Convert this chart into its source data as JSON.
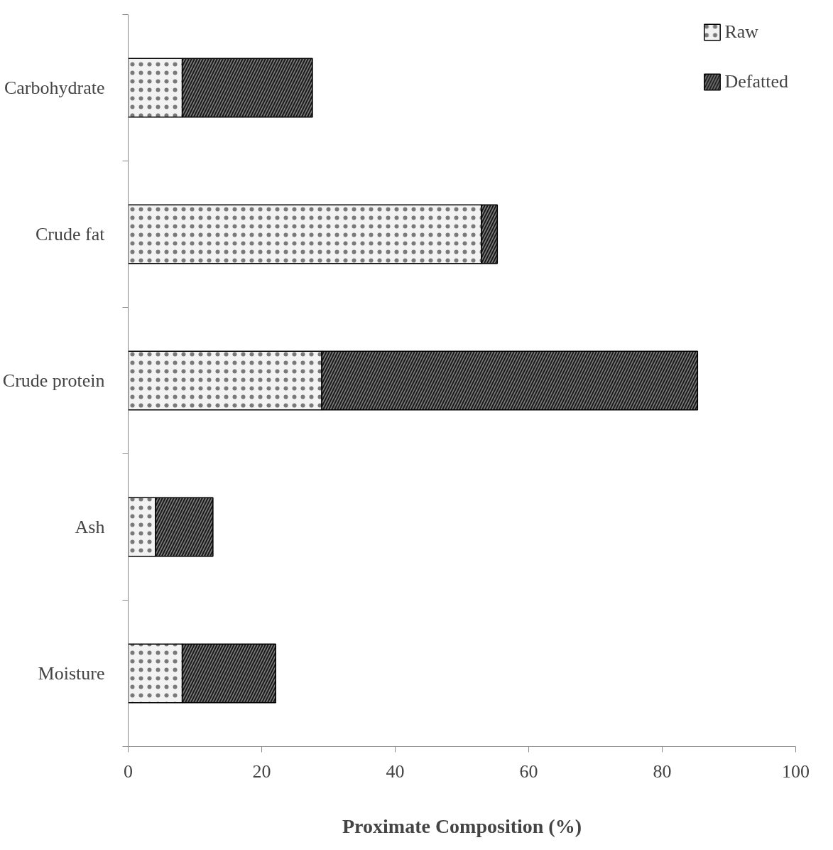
{
  "chart_data": {
    "type": "bar",
    "orientation": "horizontal",
    "stacked": true,
    "xlabel": "Proximate Composition (%)",
    "categories": [
      "Carbohydrate",
      "Crude fat",
      "Crude protein",
      "Ash",
      "Moisture"
    ],
    "series": [
      {
        "name": "Raw",
        "color": "#f2f2f2",
        "values": [
          8.1,
          52.9,
          29.0,
          4.1,
          8.1
        ]
      },
      {
        "name": "Defatted",
        "color": "#7f7f7f",
        "values": [
          19.5,
          2.4,
          56.3,
          8.6,
          14.0
        ]
      }
    ],
    "xlim": [
      0,
      100
    ],
    "xticks": [
      0,
      20,
      40,
      60,
      80,
      100
    ],
    "grid": false,
    "legend": "top right"
  }
}
